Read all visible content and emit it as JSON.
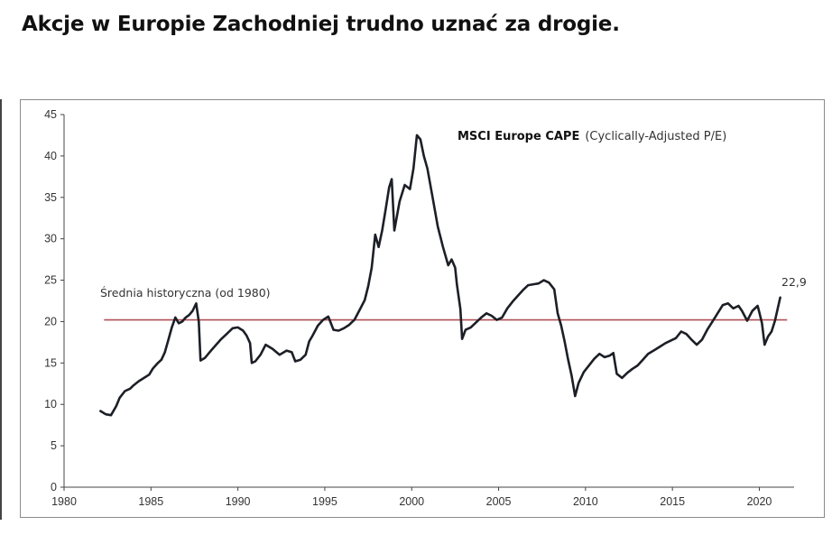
{
  "page": {
    "headline": "Akcje w Europie Zachodniej trudno uznać za drogie."
  },
  "colors": {
    "series": "#1c1f26",
    "average_line": "#b05058",
    "axis": "#444444",
    "text": "#333333"
  },
  "chart_data": {
    "type": "line",
    "legend": {
      "bold": "MSCI Europe CAPE",
      "normal": "(Cyclically-Adjusted  P/E)"
    },
    "xlim": [
      1980,
      2022
    ],
    "ylim": [
      0,
      45
    ],
    "x_ticks": [
      1980,
      1985,
      1990,
      1995,
      2000,
      2005,
      2010,
      2015,
      2020
    ],
    "y_ticks": [
      0,
      5,
      10,
      15,
      20,
      25,
      30,
      35,
      40,
      45
    ],
    "grid": false,
    "average_line": {
      "value": 20.2,
      "x_start": 1982.3,
      "x_end": 2021.6,
      "label": "Średnia historyczna (od 1980)"
    },
    "last_value_label": "22,9",
    "series": [
      {
        "x": [
          1982.1,
          1982.4,
          1982.7,
          1983.0,
          1983.2,
          1983.5,
          1983.8,
          1984.0,
          1984.3,
          1984.6,
          1984.9,
          1985.1,
          1985.4,
          1985.6,
          1985.8,
          1986.0,
          1986.2,
          1986.4,
          1986.6,
          1986.8,
          1987.0,
          1987.2,
          1987.4,
          1987.6,
          1987.75,
          1987.85,
          1988.1,
          1988.5,
          1989.0,
          1989.4,
          1989.7,
          1990.0,
          1990.3,
          1990.5,
          1990.7,
          1990.8,
          1991.0,
          1991.3,
          1991.6,
          1992.0,
          1992.4,
          1992.8,
          1993.1,
          1993.3,
          1993.6,
          1993.9,
          1994.1,
          1994.3,
          1994.6,
          1994.9,
          1995.2,
          1995.5,
          1995.8,
          1996.1,
          1996.4,
          1996.7,
          1997.0,
          1997.3,
          1997.5,
          1997.7,
          1997.9,
          1998.1,
          1998.3,
          1998.5,
          1998.7,
          1998.85,
          1999.0,
          1999.3,
          1999.6,
          1999.9,
          2000.1,
          2000.3,
          2000.5,
          2000.7,
          2000.9,
          2001.2,
          2001.5,
          2001.8,
          2002.1,
          2002.3,
          2002.5,
          2002.6,
          2002.8,
          2002.9,
          2003.1,
          2003.4,
          2003.7,
          2004.0,
          2004.3,
          2004.6,
          2004.9,
          2005.2,
          2005.5,
          2005.8,
          2006.1,
          2006.4,
          2006.7,
          2007.0,
          2007.3,
          2007.6,
          2007.9,
          2008.2,
          2008.4,
          2008.6,
          2008.8,
          2009.0,
          2009.2,
          2009.4,
          2009.6,
          2009.9,
          2010.2,
          2010.5,
          2010.8,
          2011.1,
          2011.4,
          2011.6,
          2011.8,
          2012.1,
          2012.4,
          2012.7,
          2013.0,
          2013.3,
          2013.6,
          2014.0,
          2014.3,
          2014.6,
          2014.9,
          2015.2,
          2015.5,
          2015.8,
          2016.1,
          2016.4,
          2016.7,
          2017.0,
          2017.3,
          2017.6,
          2017.9,
          2018.2,
          2018.5,
          2018.8,
          2019.0,
          2019.3,
          2019.6,
          2019.9,
          2020.0,
          2020.15,
          2020.3,
          2020.5,
          2020.7,
          2020.9,
          2021.05,
          2021.2
        ],
        "y": [
          9.2,
          8.8,
          8.7,
          9.8,
          10.8,
          11.6,
          11.9,
          12.3,
          12.8,
          13.2,
          13.6,
          14.3,
          15.0,
          15.4,
          16.3,
          17.8,
          19.3,
          20.5,
          19.8,
          20.0,
          20.5,
          20.8,
          21.3,
          22.2,
          20.0,
          15.3,
          15.6,
          16.6,
          17.8,
          18.6,
          19.2,
          19.3,
          18.9,
          18.3,
          17.4,
          15.0,
          15.2,
          16.0,
          17.2,
          16.7,
          16.0,
          16.5,
          16.3,
          15.2,
          15.4,
          16.0,
          17.6,
          18.3,
          19.5,
          20.2,
          20.6,
          19.0,
          18.9,
          19.2,
          19.6,
          20.2,
          21.4,
          22.6,
          24.3,
          26.5,
          30.5,
          29.0,
          31.0,
          33.5,
          36.2,
          37.2,
          31.0,
          34.5,
          36.5,
          36.0,
          38.5,
          42.5,
          42.0,
          40.0,
          38.5,
          35.0,
          31.5,
          29.0,
          26.8,
          27.5,
          26.5,
          24.5,
          21.5,
          17.9,
          19.0,
          19.3,
          19.9,
          20.5,
          21.0,
          20.7,
          20.2,
          20.5,
          21.6,
          22.4,
          23.1,
          23.8,
          24.4,
          24.5,
          24.6,
          25.0,
          24.7,
          23.9,
          21.0,
          19.5,
          17.6,
          15.4,
          13.5,
          11.0,
          12.6,
          13.9,
          14.7,
          15.5,
          16.1,
          15.7,
          15.9,
          16.2,
          13.7,
          13.2,
          13.8,
          14.3,
          14.7,
          15.4,
          16.1,
          16.6,
          17.0,
          17.4,
          17.7,
          18.0,
          18.8,
          18.5,
          17.8,
          17.2,
          17.8,
          19.0,
          20.0,
          21.0,
          22.0,
          22.2,
          21.6,
          21.9,
          21.3,
          20.1,
          21.3,
          21.9,
          21.1,
          19.8,
          17.2,
          18.2,
          18.8,
          20.1,
          21.5,
          22.9
        ]
      }
    ]
  }
}
